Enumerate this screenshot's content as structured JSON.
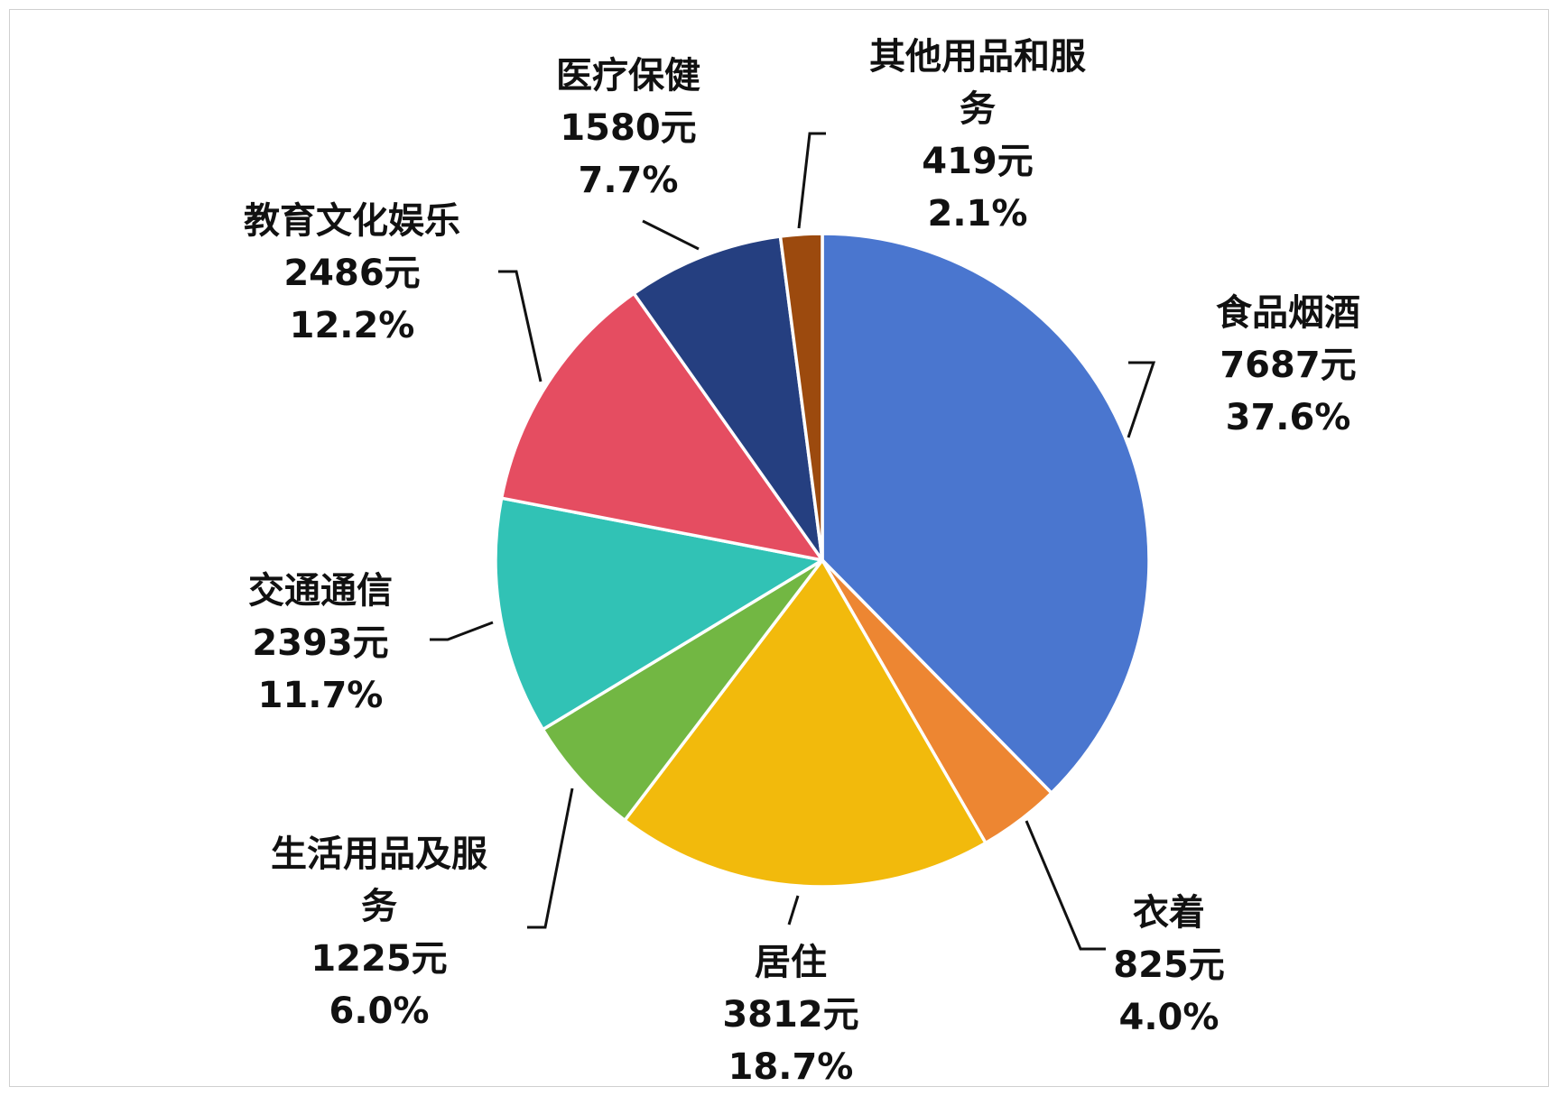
{
  "chart_data": {
    "type": "pie",
    "title": "",
    "start_angle_deg": 0,
    "direction": "clockwise",
    "slices": [
      {
        "label_lines": [
          "食品烟酒"
        ],
        "amount": "7687元",
        "percent": "37.6%",
        "value": 7687,
        "color": "#4A76CF"
      },
      {
        "label_lines": [
          "衣着"
        ],
        "amount": "825元",
        "percent": "4.0%",
        "value": 825,
        "color": "#ED8632"
      },
      {
        "label_lines": [
          "居住"
        ],
        "amount": "3812元",
        "percent": "18.7%",
        "value": 3812,
        "color": "#F2BA0C"
      },
      {
        "label_lines": [
          "生活用品及服",
          "务"
        ],
        "amount": "1225元",
        "percent": "6.0%",
        "value": 1225,
        "color": "#72B743"
      },
      {
        "label_lines": [
          "交通通信"
        ],
        "amount": "2393元",
        "percent": "11.7%",
        "value": 2393,
        "color": "#31C2B5"
      },
      {
        "label_lines": [
          "教育文化娱乐"
        ],
        "amount": "2486元",
        "percent": "12.2%",
        "value": 2486,
        "color": "#E54D61"
      },
      {
        "label_lines": [
          "医疗保健"
        ],
        "amount": "1580元",
        "percent": "7.7%",
        "value": 1580,
        "color": "#253F80"
      },
      {
        "label_lines": [
          "其他用品和服",
          "务"
        ],
        "amount": "419元",
        "percent": "2.1%",
        "value": 419,
        "color": "#9C4A0E"
      }
    ]
  }
}
